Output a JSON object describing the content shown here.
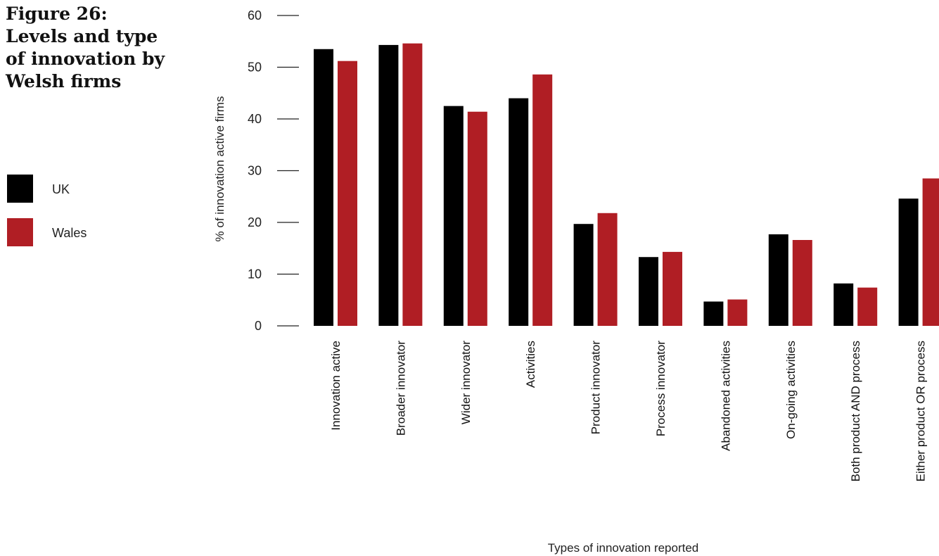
{
  "figure": {
    "title_lines": [
      "Figure 26:",
      "Levels and type",
      "of innovation by",
      "Welsh firms"
    ]
  },
  "legend": [
    {
      "label": "UK",
      "color": "#000000"
    },
    {
      "label": "Wales",
      "color": "#b01e24"
    }
  ],
  "chart_data": {
    "type": "bar",
    "title": "Figure 26: Levels and type of innovation by Welsh firms",
    "xlabel": "Types of innovation reported",
    "ylabel": "% of innovation active firms",
    "ylim": [
      0,
      60
    ],
    "yticks": [
      0,
      10,
      20,
      30,
      40,
      50,
      60
    ],
    "grid": false,
    "legend_position": "left",
    "categories": [
      "Innovation active",
      "Broader innovator",
      "Wider innovator",
      "Activities",
      "Product innovator",
      "Process innovator",
      "Abandoned activities",
      "On-going activities",
      "Both product AND process",
      "Either product OR process"
    ],
    "series": [
      {
        "name": "UK",
        "color": "#000000",
        "values": [
          53.5,
          54.3,
          42.5,
          44.0,
          19.7,
          13.3,
          4.7,
          17.7,
          8.2,
          24.6
        ]
      },
      {
        "name": "Wales",
        "color": "#b01e24",
        "values": [
          51.2,
          54.6,
          41.4,
          48.6,
          21.8,
          14.3,
          5.1,
          16.6,
          7.4,
          28.5
        ]
      }
    ]
  }
}
